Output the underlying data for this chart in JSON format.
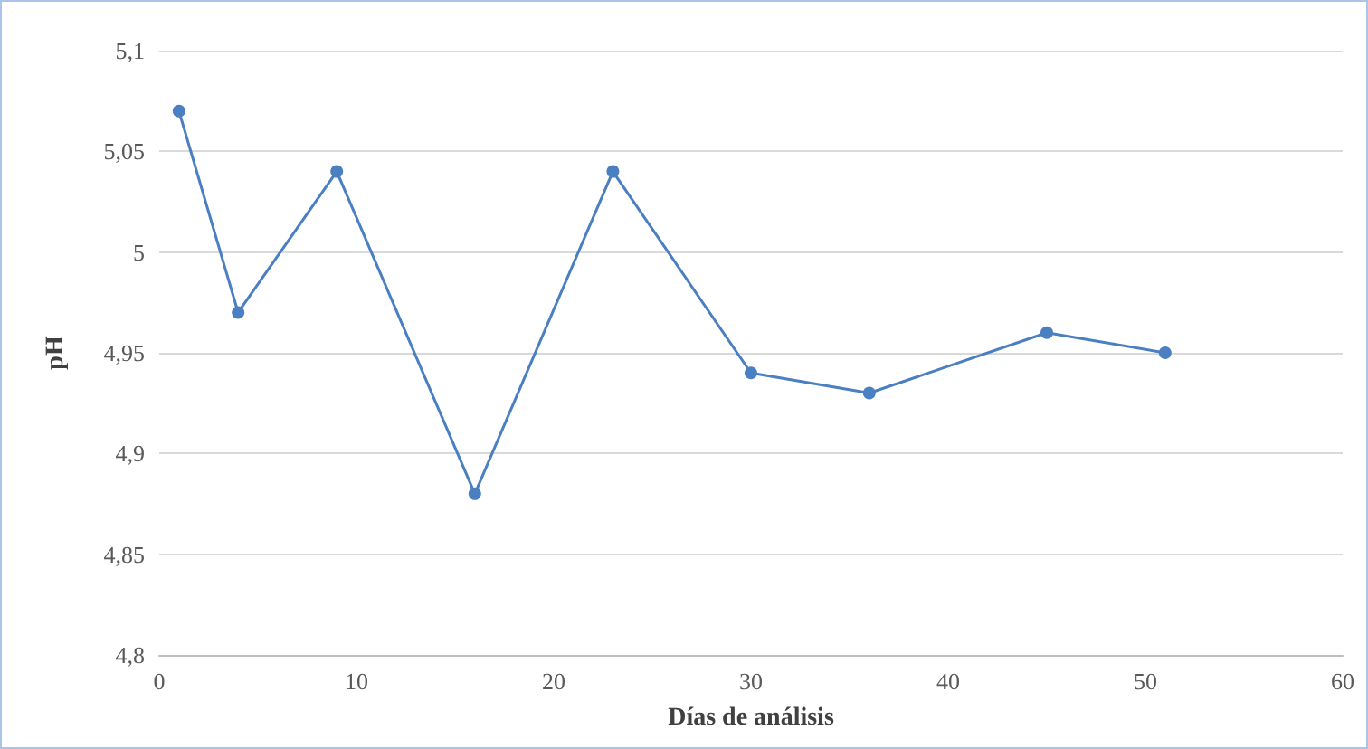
{
  "chart_data": {
    "type": "line",
    "xlabel": "Días de análisis",
    "ylabel": "pH",
    "x": [
      1,
      4,
      9,
      16,
      23,
      30,
      36,
      45,
      51
    ],
    "series": [
      {
        "color": "#4a7fc1",
        "values": [
          5.07,
          4.97,
          5.04,
          4.88,
          5.04,
          4.94,
          4.93,
          4.96,
          4.95
        ]
      }
    ],
    "xlim": [
      0,
      60
    ],
    "xticks": [
      0,
      10,
      20,
      30,
      40,
      50,
      60
    ],
    "ylim": [
      4.8,
      5.1
    ],
    "yticks": [
      {
        "value": 4.8,
        "label": "4,8"
      },
      {
        "value": 4.85,
        "label": "4,85"
      },
      {
        "value": 4.9,
        "label": "4,9"
      },
      {
        "value": 4.95,
        "label": "4,95"
      },
      {
        "value": 5,
        "label": "5"
      },
      {
        "value": 5.05,
        "label": "5,05"
      },
      {
        "value": 5.1,
        "label": "5,1"
      }
    ],
    "grid": "y",
    "marker": "circle",
    "line_style": "solid"
  }
}
